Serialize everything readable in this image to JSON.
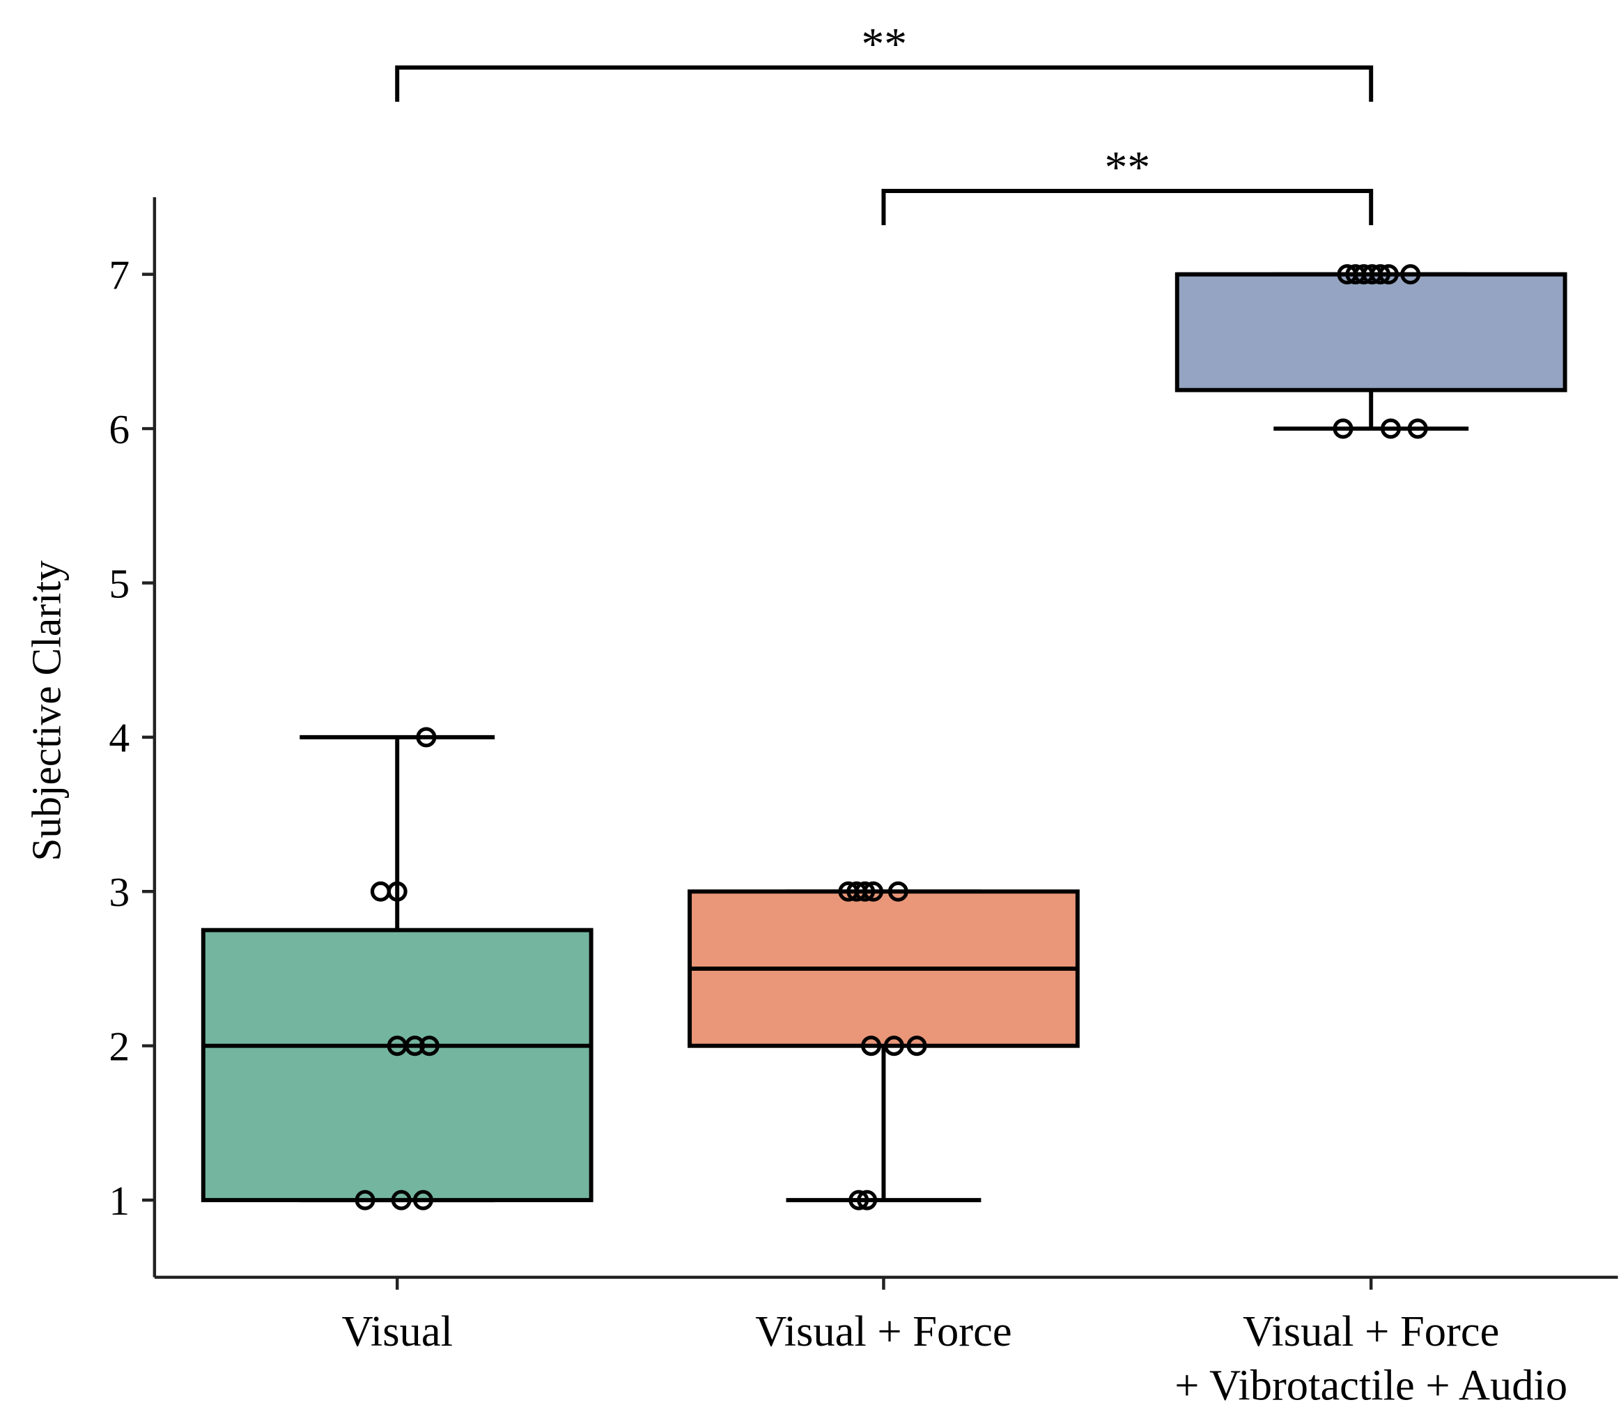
{
  "chart_data": {
    "type": "box",
    "title": "",
    "xlabel": "",
    "ylabel": "Subjective Clarity",
    "ylim": [
      0.5,
      7.5
    ],
    "yticks": [
      1,
      2,
      3,
      4,
      5,
      6,
      7
    ],
    "ytick_labels": [
      "1",
      "2",
      "3",
      "4",
      "5",
      "6",
      "7"
    ],
    "grid": false,
    "categories": [
      {
        "label_lines": [
          "Visual"
        ]
      },
      {
        "label_lines": [
          "Visual + Force"
        ]
      },
      {
        "label_lines": [
          "Visual + Force",
          "+ Vibrotactile + Audio"
        ]
      }
    ],
    "boxes": [
      {
        "whisker_low": 1,
        "q1": 1,
        "median": 2,
        "q3": 2.75,
        "whisker_high": 4,
        "color": "#74b5a0",
        "points": [
          1,
          1,
          1,
          2,
          2,
          2,
          3,
          3,
          4
        ]
      },
      {
        "whisker_low": 1,
        "q1": 2,
        "median": 2.5,
        "q3": 3,
        "whisker_high": 3,
        "color": "#e99679",
        "points": [
          1,
          1,
          2,
          2,
          2,
          3,
          3,
          3,
          3,
          3
        ]
      },
      {
        "whisker_low": 6,
        "q1": 6.25,
        "median": 7,
        "q3": 7,
        "whisker_high": 7,
        "color": "#95a4c2",
        "points": [
          6,
          6,
          6,
          7,
          7,
          7,
          7,
          7,
          7,
          7
        ]
      }
    ],
    "annotations": [
      {
        "from": 0,
        "to": 2,
        "text": "**"
      },
      {
        "from": 1,
        "to": 2,
        "text": "**"
      }
    ]
  }
}
